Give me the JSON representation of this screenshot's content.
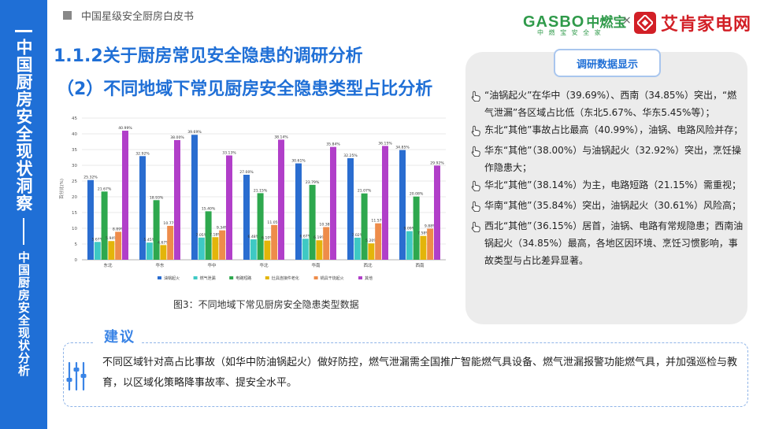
{
  "sidebar": {
    "main": "中国厨房安全现状洞察",
    "sub": "中国厨房安全现状分析"
  },
  "header": {
    "doc_title": "中国星级安全厨房白皮书",
    "logo_gasbo_en": "GASBO",
    "logo_gasbo_cn": "中燃宝",
    "logo_gasbo_tag": "中 燃 宝 安 全 家",
    "logo_sep": "×",
    "logo_aken": "艾肯家电网"
  },
  "headings": {
    "h1": "1.1.2关于厨房常见安全隐患的调研分析",
    "h2": "（2）不同地域下常见厨房安全隐患类型占比分析"
  },
  "chart_caption": "图3：不同地域下常见厨房安全隐患类型数据",
  "chart_data": {
    "type": "bar",
    "title": "",
    "xlabel": "",
    "ylabel": "百分比(%)",
    "ylim": [
      0,
      45
    ],
    "yticks": [
      0,
      5,
      10,
      15,
      20,
      25,
      30,
      35,
      40,
      45
    ],
    "grid": true,
    "legend_position": "bottom",
    "categories": [
      "东北",
      "华东",
      "华中",
      "华北",
      "华南",
      "西北",
      "西南"
    ],
    "series": [
      {
        "name": "油锅起火",
        "color": "#2a6dd0",
        "values": [
          25.32,
          32.92,
          39.69,
          27.0,
          30.61,
          32.25,
          34.85
        ],
        "labels": [
          "25.32%",
          "32.92%",
          "39.69%",
          "27.00%",
          "30.61%",
          "32.25%",
          "34.85%"
        ]
      },
      {
        "name": "燃气泄漏",
        "color": "#3ec9c4",
        "values": [
          5.67,
          5.45,
          7.05,
          6.48,
          6.67,
          7.02,
          9.09
        ],
        "labels": [
          "5.67%",
          "5.45%",
          "7.05%",
          "6.48%",
          "6.67%",
          "7.02%",
          "9.09%"
        ]
      },
      {
        "name": "电路短路",
        "color": "#2ea84e",
        "values": [
          21.67,
          18.93,
          15.4,
          21.15,
          23.79,
          21.07,
          20.08
        ],
        "labels": [
          "21.67%",
          "18.93%",
          "15.40%",
          "21.15%",
          "23.79%",
          "21.07%",
          "20.08%"
        ]
      },
      {
        "name": "灶具连接件老化",
        "color": "#e3b50a",
        "values": [
          5.94,
          4.67,
          7.18,
          6.1,
          6.19,
          5.2,
          7.58
        ],
        "labels": [
          "5.94%",
          "4.67%",
          "7.18%",
          "6.10%",
          "6.19%",
          "5.20%",
          "7.58%"
        ]
      },
      {
        "name": "锅具干烧起火",
        "color": "#ee8c4a",
        "values": [
          8.89,
          10.77,
          9.34,
          11.05,
          10.38,
          11.57,
          9.88
        ],
        "labels": [
          "8.89%",
          "10.77%",
          "9.34%",
          "11.05%",
          "10.38%",
          "11.57%",
          "9.88%"
        ]
      },
      {
        "name": "其他",
        "color": "#b13fc9",
        "values": [
          40.99,
          38.0,
          33.13,
          38.14,
          35.84,
          36.15,
          29.92
        ],
        "labels": [
          "40.99%",
          "38.00%",
          "33.13%",
          "38.14%",
          "35.84%",
          "36.15%",
          "29.92%"
        ]
      }
    ]
  },
  "panel": {
    "badge": "调研数据显示",
    "items": [
      "“油锅起火”在华中（39.69%）、西南（34.85%）突出，“燃气泄漏”各区域占比低（东北5.67%、华东5.45%等）；",
      "东北“其他”事故占比最高（40.99%），油锅、电路风险并存；",
      "华东“其他”（38.00%）与油锅起火（32.92%）突出，烹饪操作隐患大；",
      "华北“其他”（38.14%）为主，电路短路（21.15%）需重视；",
      "华南“其他”（35.84%）突出，油锅起火（30.61%）风险高；",
      "西北“其他”（36.15%）居首，油锅、电路有常规隐患；西南油锅起火（34.85%）最高，各地区因环境、烹饪习惯影响，事故类型与占比差异显著。"
    ]
  },
  "suggestion": {
    "title": "建议",
    "text": "不同区域针对高占比事故（如华中防油锅起火）做好防控，燃气泄漏需全国推广智能燃气具设备、燃气泄漏报警功能燃气具，并加强巡检与教育，以区域化策略降事故率、提安全水平。"
  },
  "colors": {
    "brand_blue": "#1f6fd6",
    "gasbo_green": "#2f9a4a",
    "aken_red": "#d21f26",
    "panel_bg": "#ececec"
  }
}
